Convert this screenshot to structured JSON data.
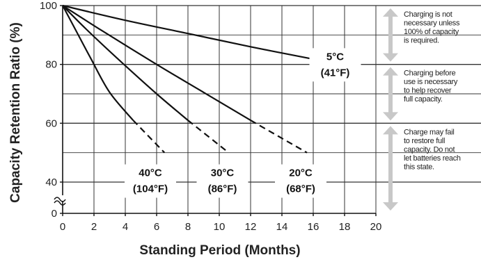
{
  "chart_data": {
    "type": "line",
    "title": "",
    "xlabel": "Standing Period (Months)",
    "ylabel": "Capacity Retention Ratio (%)",
    "xlim": [
      0,
      20
    ],
    "ylim": [
      0,
      100
    ],
    "x_ticks": [
      "0",
      "2",
      "4",
      "6",
      "8",
      "10",
      "12",
      "14",
      "16",
      "18",
      "20"
    ],
    "y_ticks": [
      {
        "label": "100",
        "value": 100
      },
      {
        "label": "80",
        "value": 80
      },
      {
        "label": "60",
        "value": 60
      },
      {
        "label": "40",
        "value": 40
      },
      {
        "label": "0",
        "value": 0
      }
    ],
    "axis_break": true,
    "grid": true,
    "series": [
      {
        "label_lines": [
          "5°C",
          "(41°F)"
        ],
        "label_at": [
          17.4,
          81.5
        ],
        "solid": [
          [
            0,
            100
          ],
          [
            4,
            95
          ],
          [
            8,
            90.5
          ],
          [
            12,
            86
          ],
          [
            16,
            81.8
          ],
          [
            19,
            79
          ]
        ],
        "dashed": []
      },
      {
        "label_lines": [
          "20°C",
          "(68°F)"
        ],
        "label_at": [
          15.2,
          42
        ],
        "solid": [
          [
            0,
            100
          ],
          [
            2.5,
            91.5
          ],
          [
            6,
            80
          ],
          [
            9,
            70.5
          ],
          [
            12,
            61
          ]
        ],
        "dashed": [
          [
            12,
            61
          ],
          [
            15.6,
            50
          ]
        ]
      },
      {
        "label_lines": [
          "30°C",
          "(86°F)"
        ],
        "label_at": [
          10.2,
          42
        ],
        "solid": [
          [
            0,
            100
          ],
          [
            1.5,
            92
          ],
          [
            3.5,
            82
          ],
          [
            6,
            70
          ],
          [
            8,
            61
          ]
        ],
        "dashed": [
          [
            8,
            61
          ],
          [
            10.6,
            50
          ]
        ]
      },
      {
        "label_lines": [
          "40°C",
          "(104°F)"
        ],
        "label_at": [
          5.6,
          42
        ],
        "solid": [
          [
            0,
            100
          ],
          [
            0.8,
            92
          ],
          [
            1.8,
            82
          ],
          [
            3,
            70.5
          ],
          [
            4.5,
            61
          ]
        ],
        "dashed": [
          [
            4.5,
            61
          ],
          [
            6.5,
            50
          ]
        ]
      }
    ],
    "annotations": [
      {
        "range": [
          80,
          100
        ],
        "lines": [
          "Charging is not",
          "necessary unless",
          "100% of capacity",
          "is required."
        ]
      },
      {
        "range": [
          60,
          80
        ],
        "lines": [
          "Charging before",
          "use is necessary",
          "to help recover",
          "full capacity."
        ]
      },
      {
        "range": [
          0,
          60
        ],
        "lines": [
          "Charge may fail",
          "to restore full",
          "capacity. Do not",
          "let batteries reach",
          "this state."
        ]
      }
    ]
  }
}
